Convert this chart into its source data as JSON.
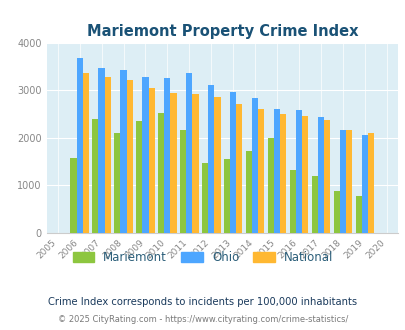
{
  "title": "Mariemont Property Crime Index",
  "years": [
    2005,
    2006,
    2007,
    2008,
    2009,
    2010,
    2011,
    2012,
    2013,
    2014,
    2015,
    2016,
    2017,
    2018,
    2019,
    2020
  ],
  "mariemont": [
    null,
    1580,
    2400,
    2100,
    2350,
    2520,
    2160,
    1460,
    1560,
    1720,
    2000,
    1320,
    1190,
    880,
    770,
    null
  ],
  "ohio": [
    null,
    3680,
    3470,
    3430,
    3280,
    3250,
    3360,
    3110,
    2960,
    2830,
    2600,
    2580,
    2440,
    2170,
    2060,
    null
  ],
  "national": [
    null,
    3360,
    3280,
    3220,
    3050,
    2950,
    2920,
    2870,
    2720,
    2610,
    2500,
    2450,
    2380,
    2170,
    2100,
    null
  ],
  "mariemont_color": "#8dc63f",
  "ohio_color": "#4da6ff",
  "national_color": "#ffb832",
  "plot_bg_color": "#ddeef5",
  "ylim": [
    0,
    4000
  ],
  "yticks": [
    0,
    1000,
    2000,
    3000,
    4000
  ],
  "ylabel_note": "Crime Index corresponds to incidents per 100,000 inhabitants",
  "footer": "© 2025 CityRating.com - https://www.cityrating.com/crime-statistics/",
  "title_color": "#1a5276",
  "legend_labels": [
    "Mariemont",
    "Ohio",
    "National"
  ],
  "note_color": "#1a3a5c",
  "footer_color": "#7a7a7a",
  "tick_color": "#888888",
  "legend_text_color": "#2c5f7a"
}
